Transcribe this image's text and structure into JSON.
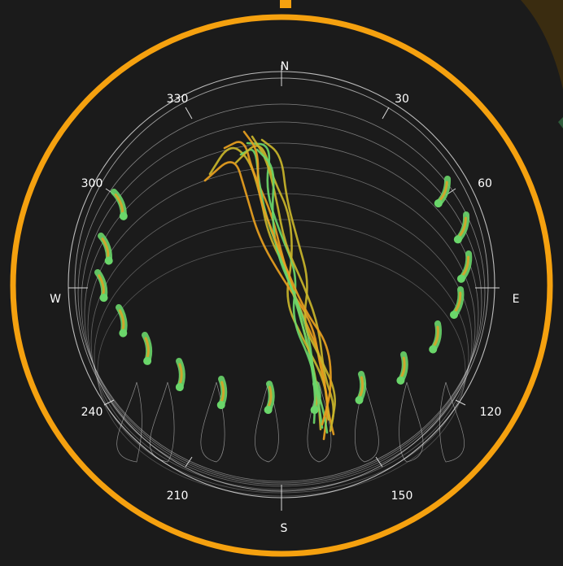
{
  "colors": {
    "background": "#1b1b1b",
    "frame": "#f5a10f",
    "grid": "#d9d9d9",
    "track_green": "#6ad66a",
    "track_yellow": "#c9b52a",
    "track_orange": "#e8a020"
  },
  "compass": {
    "north": "N",
    "south": "S",
    "east": "E",
    "west": "W"
  },
  "azimuth_labels": {
    "a330": "330",
    "a30": "30",
    "a300": "300",
    "a60": "60",
    "a240": "240",
    "a120": "120",
    "a210": "210",
    "a150": "150"
  }
}
